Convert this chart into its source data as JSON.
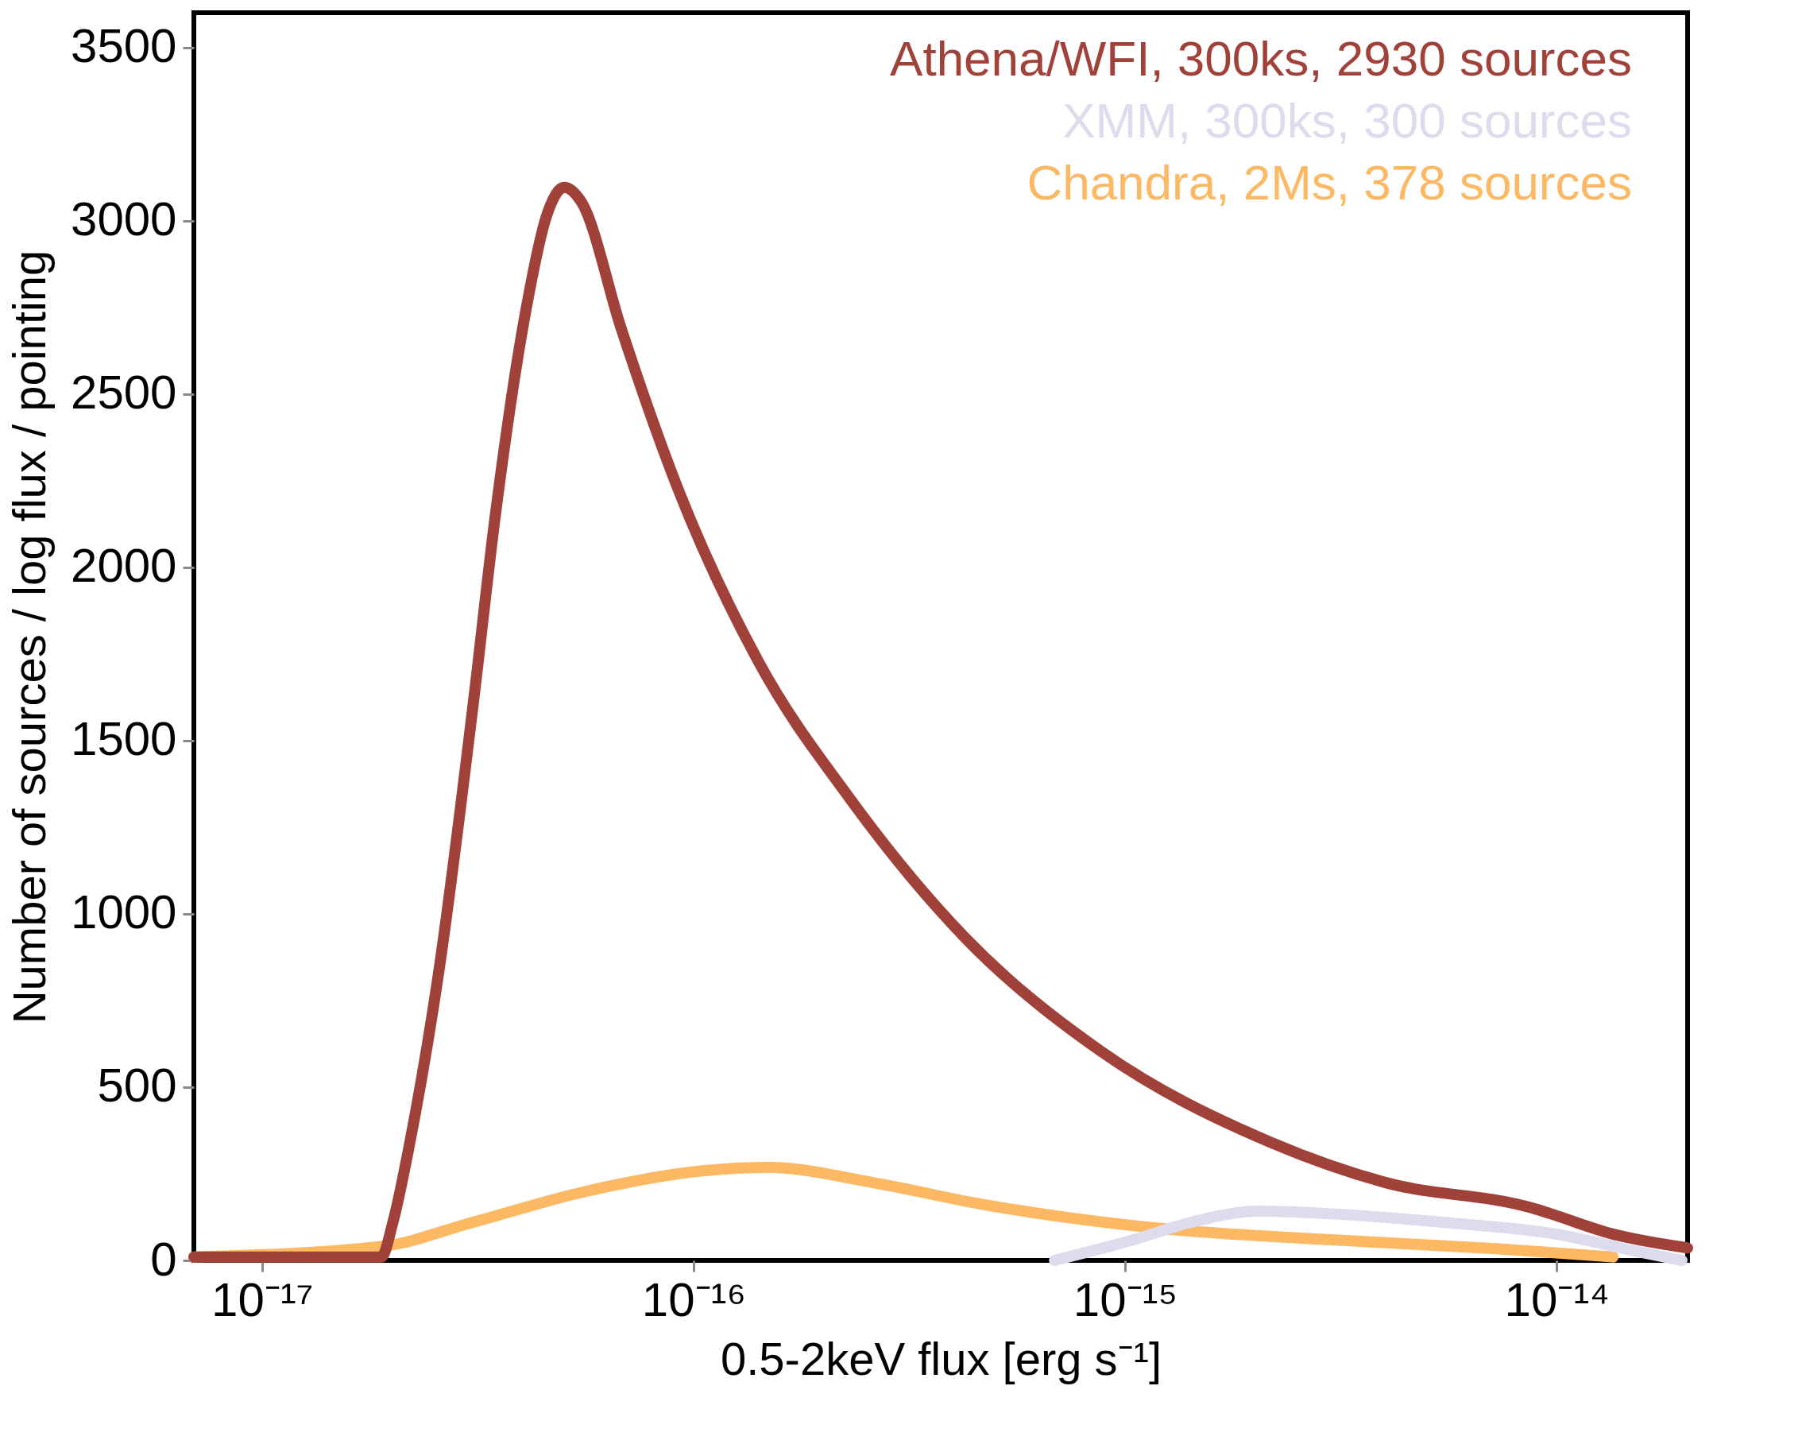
{
  "chart_data": {
    "type": "line",
    "xlabel": "0.5-2keV flux [erg s⁻¹]",
    "ylabel": "Number of sources / log flux / pointing",
    "log": "x",
    "grid": false,
    "legend": "top right",
    "marker": "none",
    "line_style": "solid",
    "xlim": [
      6.95e-18,
      2.01e-14
    ],
    "ylim": [
      0,
      3600
    ],
    "xticks": [
      {
        "value": 1e-17,
        "label": "10⁻¹⁷"
      },
      {
        "value": 1e-16,
        "label": "10⁻¹⁶"
      },
      {
        "value": 1e-15,
        "label": "10⁻¹⁵"
      },
      {
        "value": 1e-14,
        "label": "10⁻¹⁴"
      }
    ],
    "yticks": [
      0,
      500,
      1000,
      1500,
      2000,
      2500,
      3000,
      3500
    ],
    "series": [
      {
        "name": "Athena/WFI, 300ks, 2930 sources",
        "color": "#a0413a",
        "x": [
          6.95e-18,
          1.89e-17,
          2.01e-17,
          2.2e-17,
          2.57e-17,
          3.08e-17,
          3.48e-17,
          4.06e-17,
          4.58e-17,
          5.01e-17,
          5.5e-17,
          6.79e-17,
          9.2e-17,
          1.41e-16,
          2.3e-16,
          4.22e-16,
          8.75e-16,
          2.18e-15,
          4e-15,
          8.83e-15,
          9.66e-15,
          1.35e-14,
          2.01e-14
        ],
        "values": [
          10,
          10,
          110,
          340,
          837,
          1598,
          2160,
          2722,
          3020,
          3096,
          3053,
          2690,
          2226,
          1730,
          1333,
          936,
          605,
          340,
          225,
          150,
          135,
          76,
          36
        ]
      },
      {
        "name": "XMM, 300ks, 300 sources",
        "color": "#dcdcee",
        "x": [
          6.86e-16,
          1.05e-15,
          1.42e-15,
          2.05e-15,
          2.95e-15,
          5.42e-15,
          9.97e-15,
          1.53e-14,
          1.95e-14
        ],
        "values": [
          0,
          60,
          110,
          142,
          135,
          110,
          76,
          26,
          0
        ]
      },
      {
        "name": "Chandra, 2Ms, 378 sources",
        "color": "#fdb863",
        "x": [
          6.95e-18,
          1.89e-17,
          3.08e-17,
          5.66e-17,
          1.04e-16,
          1.5e-16,
          2.59e-16,
          4.75e-16,
          1.19e-15,
          2.95e-15,
          7.36e-15,
          1.35e-14
        ],
        "values": [
          10,
          40,
          110,
          200,
          258,
          268,
          225,
          160,
          93,
          60,
          33,
          10
        ]
      }
    ]
  }
}
